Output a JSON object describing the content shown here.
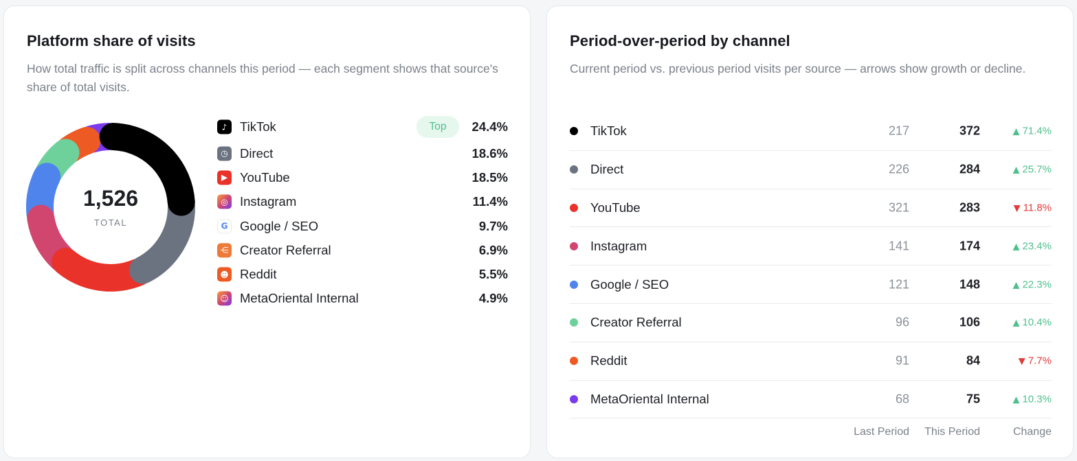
{
  "left_card": {
    "title": "Platform share of visits",
    "subtitle": "How total traffic is split across channels this period — each segment shows that source's share of total visits.",
    "donut": {
      "total": "1,526",
      "total_label": "TOTAL"
    },
    "top_badge": "Top",
    "legend": [
      {
        "name": "TikTok",
        "pct": "24.4%",
        "share": 24.4,
        "color": "#000000",
        "icon": "tiktok-icon"
      },
      {
        "name": "Direct",
        "pct": "18.6%",
        "share": 18.6,
        "color": "#6b7280",
        "icon": "clock-icon"
      },
      {
        "name": "YouTube",
        "pct": "18.5%",
        "share": 18.5,
        "color": "#e8322a",
        "icon": "youtube-icon"
      },
      {
        "name": "Instagram",
        "pct": "11.4%",
        "share": 11.4,
        "color": "#d0466f",
        "icon": "instagram-icon"
      },
      {
        "name": "Google / SEO",
        "pct": "9.7%",
        "share": 9.7,
        "color": "#4f84ec",
        "icon": "google-icon"
      },
      {
        "name": "Creator Referral",
        "pct": "6.9%",
        "share": 6.9,
        "color": "#6ed19c",
        "icon": "share-icon"
      },
      {
        "name": "Reddit",
        "pct": "5.5%",
        "share": 5.5,
        "color": "#ee5a24",
        "icon": "reddit-icon"
      },
      {
        "name": "MetaOriental Internal",
        "pct": "4.9%",
        "share": 4.9,
        "color": "#7c3aed",
        "icon": "robot-icon"
      }
    ]
  },
  "right_card": {
    "title": "Period-over-period by channel",
    "subtitle": "Current period vs. previous period visits per source — arrows show growth or decline.",
    "columns": {
      "last": "Last Period",
      "this": "This Period",
      "change": "Change"
    },
    "rows": [
      {
        "name": "TikTok",
        "color": "#000000",
        "last": "217",
        "this": "372",
        "change": "71.4%",
        "direction": "up"
      },
      {
        "name": "Direct",
        "color": "#6b7280",
        "last": "226",
        "this": "284",
        "change": "25.7%",
        "direction": "up"
      },
      {
        "name": "YouTube",
        "color": "#e8322a",
        "last": "321",
        "this": "283",
        "change": "11.8%",
        "direction": "down"
      },
      {
        "name": "Instagram",
        "color": "#d0466f",
        "last": "141",
        "this": "174",
        "change": "23.4%",
        "direction": "up"
      },
      {
        "name": "Google / SEO",
        "color": "#4f84ec",
        "last": "121",
        "this": "148",
        "change": "22.3%",
        "direction": "up"
      },
      {
        "name": "Creator Referral",
        "color": "#6ed19c",
        "last": "96",
        "this": "106",
        "change": "10.4%",
        "direction": "up"
      },
      {
        "name": "Reddit",
        "color": "#ee5a24",
        "last": "91",
        "this": "84",
        "change": "7.7%",
        "direction": "down"
      },
      {
        "name": "MetaOriental Internal",
        "color": "#7c3aed",
        "last": "68",
        "this": "75",
        "change": "10.3%",
        "direction": "up"
      }
    ]
  }
}
